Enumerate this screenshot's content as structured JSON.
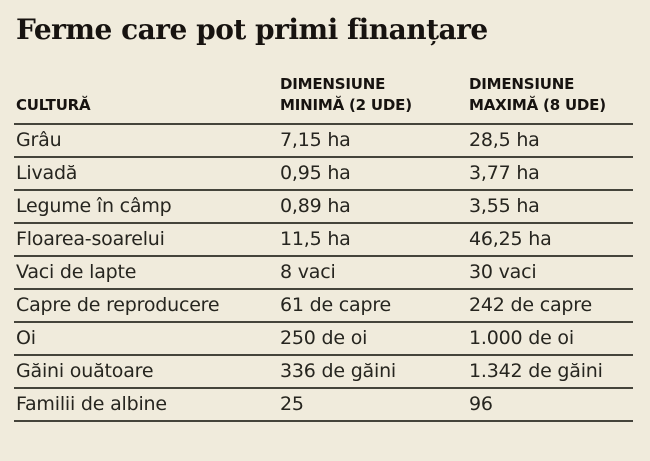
{
  "title": "Ferme care pot primi finanțare",
  "colors": {
    "background": "#f0ebdc",
    "text": "#26251f",
    "title_text": "#171310",
    "rule": "#45443b"
  },
  "chart_data": {
    "type": "table",
    "title": "Ferme care pot primi finanțare",
    "columns": [
      "CULTURĂ",
      "DIMENSIUNE MINIMĂ (2 UDE)",
      "DIMENSIUNE MAXIMĂ (8 UDE)"
    ],
    "rows": [
      [
        "Grâu",
        "7,15 ha",
        "28,5 ha"
      ],
      [
        "Livadă",
        "0,95 ha",
        "3,77 ha"
      ],
      [
        "Legume în câmp",
        "0,89 ha",
        "3,55 ha"
      ],
      [
        "Floarea-soarelui",
        "11,5 ha",
        "46,25 ha"
      ],
      [
        "Vaci de lapte",
        "8 vaci",
        "30 vaci"
      ],
      [
        "Capre de reproducere",
        "61 de capre",
        "242 de capre"
      ],
      [
        "Oi",
        "250 de oi",
        "1.000 de oi"
      ],
      [
        "Găini ouătoare",
        "336 de găini",
        "1.342 de găini"
      ],
      [
        "Familii de albine",
        "25",
        "96"
      ]
    ],
    "layout": {
      "grid": "horizontal-rules-only",
      "legend": "none"
    }
  }
}
